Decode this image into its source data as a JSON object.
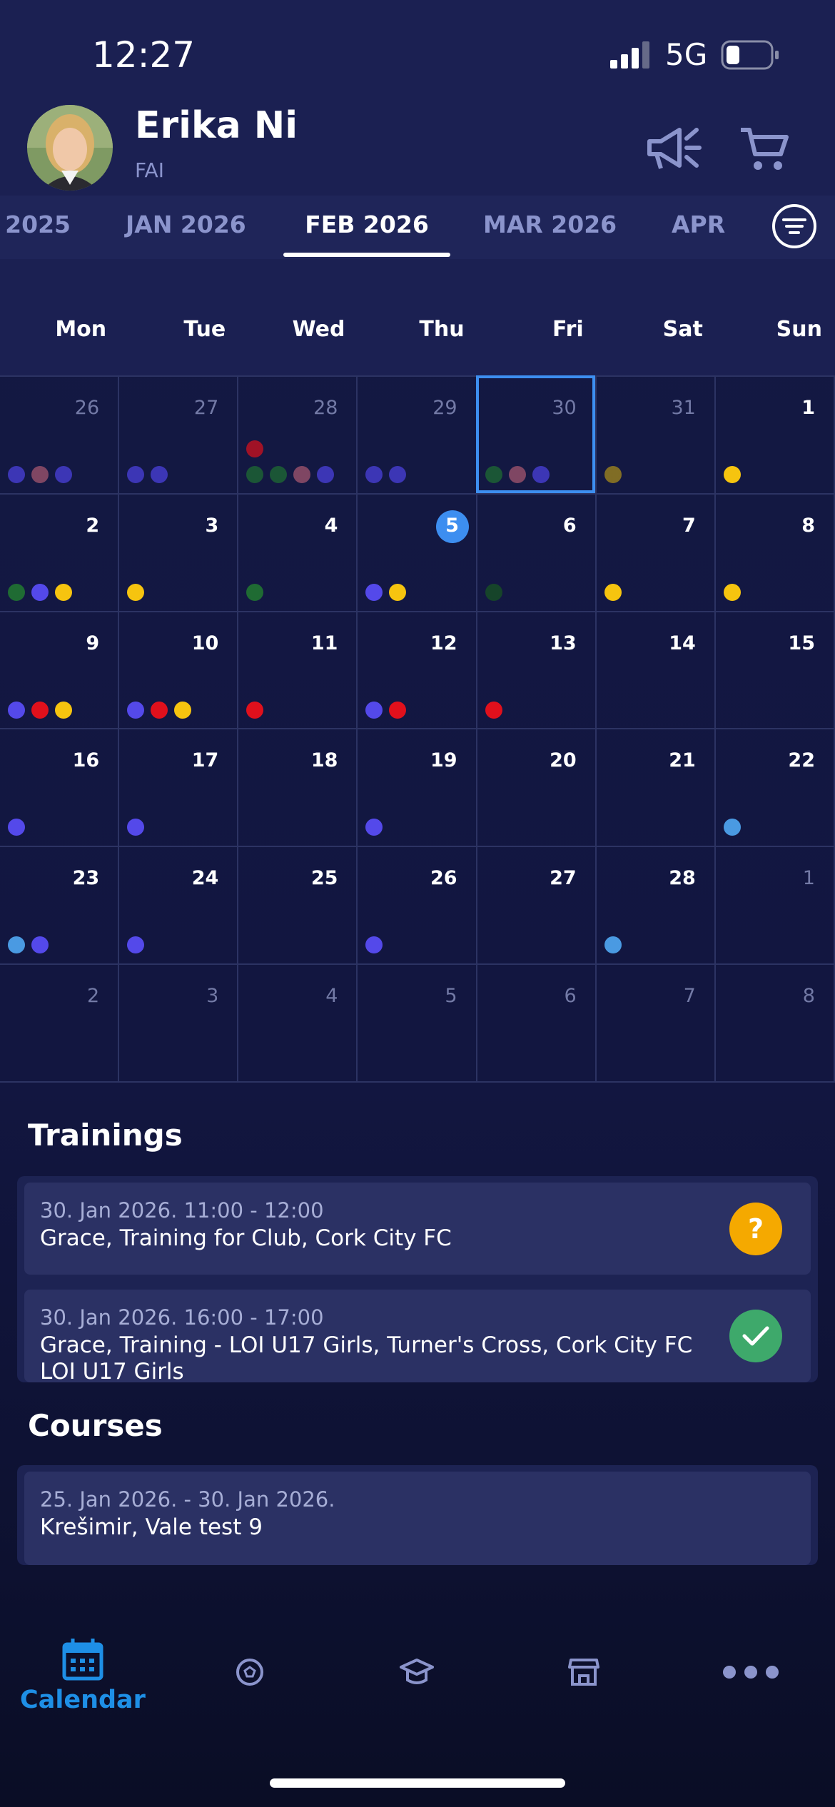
{
  "status_bar": {
    "time": "12:27",
    "network": "5G"
  },
  "profile": {
    "name": "Erika Ni",
    "organization": "FAI"
  },
  "month_tabs": {
    "items": [
      "2025",
      "JAN 2026",
      "FEB 2026",
      "MAR 2026",
      "APR"
    ],
    "active": 2
  },
  "calendar": {
    "weekdays": [
      "Mon",
      "Tue",
      "Wed",
      "Thu",
      "Fri",
      "Sat",
      "Sun"
    ],
    "weeks": [
      [
        {
          "day": 26,
          "muted": true,
          "dots": [
            "#4b40dc",
            "#a4566f",
            "#4b40dc"
          ]
        },
        {
          "day": 27,
          "muted": true,
          "dots": [
            "#4b40dc",
            "#4b40dc"
          ]
        },
        {
          "day": 28,
          "muted": true,
          "dots": [
            "#1f6b33",
            "#1f6b33",
            "#a4566f",
            "#4b40dc"
          ],
          "dots2": [
            "#d0101e"
          ]
        },
        {
          "day": 29,
          "muted": true,
          "dots": [
            "#4b40dc",
            "#4b40dc"
          ]
        },
        {
          "day": 30,
          "muted": true,
          "selected": true,
          "dots": [
            "#1f6b33",
            "#a4566f",
            "#4b40dc"
          ]
        },
        {
          "day": 31,
          "muted": true,
          "dots": [
            "#a68a1c"
          ]
        },
        {
          "day": 1,
          "dots": [
            "#f6c40f"
          ]
        }
      ],
      [
        {
          "day": 2,
          "dots": [
            "#1f6b33",
            "#5449ea",
            "#f6c40f"
          ]
        },
        {
          "day": 3,
          "dots": [
            "#f6c40f"
          ]
        },
        {
          "day": 4,
          "dots": [
            "#1f6b33"
          ]
        },
        {
          "day": 5,
          "today": true,
          "dots": [
            "#5449ea",
            "#f6c40f"
          ]
        },
        {
          "day": 6,
          "dots": [
            "#16442a"
          ]
        },
        {
          "day": 7,
          "dots": [
            "#f6c40f"
          ]
        },
        {
          "day": 8,
          "dots": [
            "#f6c40f"
          ]
        }
      ],
      [
        {
          "day": 9,
          "dots": [
            "#5449ea",
            "#e0101c",
            "#f6c40f"
          ]
        },
        {
          "day": 10,
          "dots": [
            "#5449ea",
            "#e0101c",
            "#f6c40f"
          ]
        },
        {
          "day": 11,
          "dots": [
            "#e0101c"
          ]
        },
        {
          "day": 12,
          "dots": [
            "#5449ea",
            "#e0101c"
          ]
        },
        {
          "day": 13,
          "dots": [
            "#e0101c"
          ]
        },
        {
          "day": 14,
          "dots": []
        },
        {
          "day": 15,
          "dots": []
        }
      ],
      [
        {
          "day": 16,
          "dots": [
            "#5449ea"
          ]
        },
        {
          "day": 17,
          "dots": [
            "#5449ea"
          ]
        },
        {
          "day": 18,
          "dots": []
        },
        {
          "day": 19,
          "dots": [
            "#5449ea"
          ]
        },
        {
          "day": 20,
          "dots": []
        },
        {
          "day": 21,
          "dots": []
        },
        {
          "day": 22,
          "dots": [
            "#4a9ae2"
          ]
        }
      ],
      [
        {
          "day": 23,
          "dots": [
            "#4a9ae2",
            "#5449ea"
          ]
        },
        {
          "day": 24,
          "dots": [
            "#5449ea"
          ]
        },
        {
          "day": 25,
          "dots": []
        },
        {
          "day": 26,
          "dots": [
            "#5449ea"
          ]
        },
        {
          "day": 27,
          "dots": []
        },
        {
          "day": 28,
          "dots": [
            "#4a9ae2"
          ]
        },
        {
          "day": 1,
          "muted": true,
          "dots": []
        }
      ],
      [
        {
          "day": 2,
          "muted": true,
          "dots": []
        },
        {
          "day": 3,
          "muted": true,
          "dots": []
        },
        {
          "day": 4,
          "muted": true,
          "dots": []
        },
        {
          "day": 5,
          "muted": true,
          "dots": []
        },
        {
          "day": 6,
          "muted": true,
          "dots": []
        },
        {
          "day": 7,
          "muted": true,
          "dots": []
        },
        {
          "day": 8,
          "muted": true,
          "dots": []
        }
      ]
    ]
  },
  "trainings": {
    "title": "Trainings",
    "items": [
      {
        "when": "30. Jan 2026. 11:00 - 12:00",
        "what": "Grace, Training for Club, Cork City FC",
        "status": {
          "label": "?",
          "color": "#f5a900"
        }
      },
      {
        "when": "30. Jan 2026. 16:00 - 17:00",
        "what": "Grace, Training - LOI U17 Girls, Turner's Cross, Cork City FC LOI U17 Girls",
        "status": {
          "color": "#3ea96b"
        }
      }
    ]
  },
  "courses": {
    "title": "Courses",
    "items": [
      {
        "when": "25. Jan 2026. - 30. Jan 2026.",
        "what": "Krešimir, Vale test 9"
      }
    ]
  },
  "nav": {
    "active_label": "Calendar"
  }
}
